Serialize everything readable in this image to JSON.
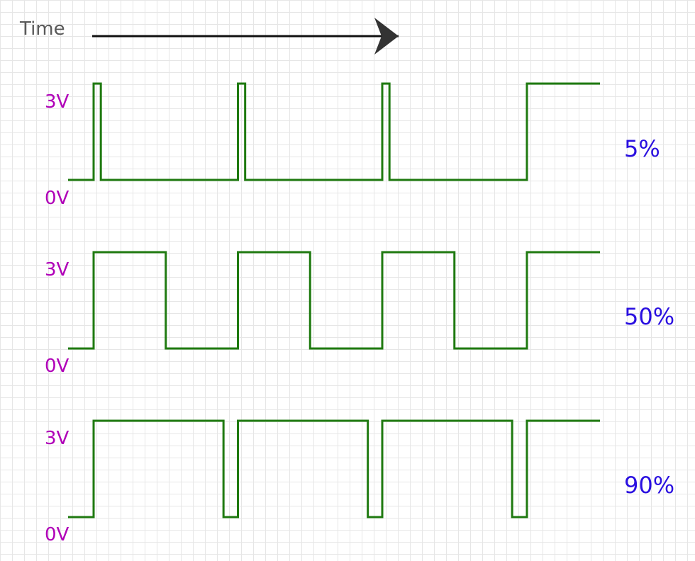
{
  "time_axis": {
    "label": "Time",
    "arrow_color": "#111111"
  },
  "colors": {
    "waveform": "#1f7a10",
    "voltage_label": "#b000b8",
    "duty_label": "#2a10e0",
    "grid": "#e6e6e6",
    "time_label": "#595959"
  },
  "waveforms": [
    {
      "high_label": "3V",
      "low_label": "0V",
      "duty_label": "5%",
      "duty_cycle": 0.05
    },
    {
      "high_label": "3V",
      "low_label": "0V",
      "duty_label": "50%",
      "duty_cycle": 0.5
    },
    {
      "high_label": "3V",
      "low_label": "0V",
      "duty_label": "90%",
      "duty_cycle": 0.9
    }
  ]
}
